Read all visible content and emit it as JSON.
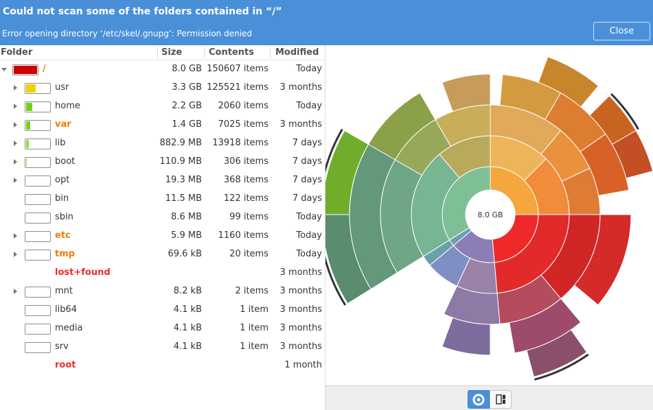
{
  "banner": {
    "title": "Could not scan some of the folders contained in “/”",
    "message": "Error opening directory ‘/etc/skel/.gnupg’: Permission denied",
    "close_label": "Close"
  },
  "columns": {
    "folder": "Folder",
    "size": "Size",
    "contents": "Contents",
    "modified": "Modified"
  },
  "rows": [
    {
      "name": "/",
      "size": "8.0 GB",
      "contents": "150607 items",
      "modified": "Today",
      "fill": 1.0,
      "color": "#cc0000"
    },
    {
      "name": "usr",
      "size": "3.3 GB",
      "contents": "125521 items",
      "modified": "3 months",
      "fill": 0.41,
      "color": "#edd400"
    },
    {
      "name": "home",
      "size": "2.2 GB",
      "contents": "2060 items",
      "modified": "Today",
      "fill": 0.27,
      "color": "#73d216"
    },
    {
      "name": "var",
      "size": "1.4 GB",
      "contents": "7025 items",
      "modified": "3 months",
      "fill": 0.17,
      "color": "#73d216"
    },
    {
      "name": "lib",
      "size": "882.9 MB",
      "contents": "13918 items",
      "modified": "7 days",
      "fill": 0.11,
      "color": "#8ae234"
    },
    {
      "name": "boot",
      "size": "110.9 MB",
      "contents": "306 items",
      "modified": "7 days",
      "fill": 0.014,
      "color": "#8ae234"
    },
    {
      "name": "opt",
      "size": "19.3 MB",
      "contents": "368 items",
      "modified": "7 days",
      "fill": 0.0,
      "color": "#8ae234"
    },
    {
      "name": "bin",
      "size": "11.5 MB",
      "contents": "122 items",
      "modified": "7 days",
      "fill": 0.0,
      "color": "#8ae234"
    },
    {
      "name": "sbin",
      "size": "8.6 MB",
      "contents": "99 items",
      "modified": "Today",
      "fill": 0.0,
      "color": "#8ae234"
    },
    {
      "name": "etc",
      "size": "5.9 MB",
      "contents": "1160 items",
      "modified": "Today",
      "fill": 0.0,
      "color": "#8ae234"
    },
    {
      "name": "tmp",
      "size": "69.6 kB",
      "contents": "20 items",
      "modified": "Today",
      "fill": 0.0,
      "color": "#8ae234"
    },
    {
      "name": "lost+found",
      "size": "",
      "contents": "",
      "modified": "3 months",
      "fill": 0.0,
      "color": "#8ae234"
    },
    {
      "name": "mnt",
      "size": "8.2 kB",
      "contents": "2 items",
      "modified": "3 months",
      "fill": 0.0,
      "color": "#8ae234"
    },
    {
      "name": "lib64",
      "size": "4.1 kB",
      "contents": "1 item",
      "modified": "3 months",
      "fill": 0.0,
      "color": "#8ae234"
    },
    {
      "name": "media",
      "size": "4.1 kB",
      "contents": "1 item",
      "modified": "3 months",
      "fill": 0.0,
      "color": "#8ae234"
    },
    {
      "name": "srv",
      "size": "4.1 kB",
      "contents": "1 item",
      "modified": "3 months",
      "fill": 0.0,
      "color": "#8ae234"
    },
    {
      "name": "root",
      "size": "",
      "contents": "",
      "modified": "1 month",
      "fill": 0.0,
      "color": "#8ae234"
    }
  ],
  "chart": {
    "center_label": "8.0 GB"
  },
  "toolbar": {
    "buttons": [
      {
        "icon": "ring-chart-icon",
        "active": true
      },
      {
        "icon": "treemap-chart-icon",
        "active": false
      }
    ]
  },
  "colors": {
    "accent": "#4a90d9",
    "warning": "#f57900",
    "error": "#ef2929"
  }
}
